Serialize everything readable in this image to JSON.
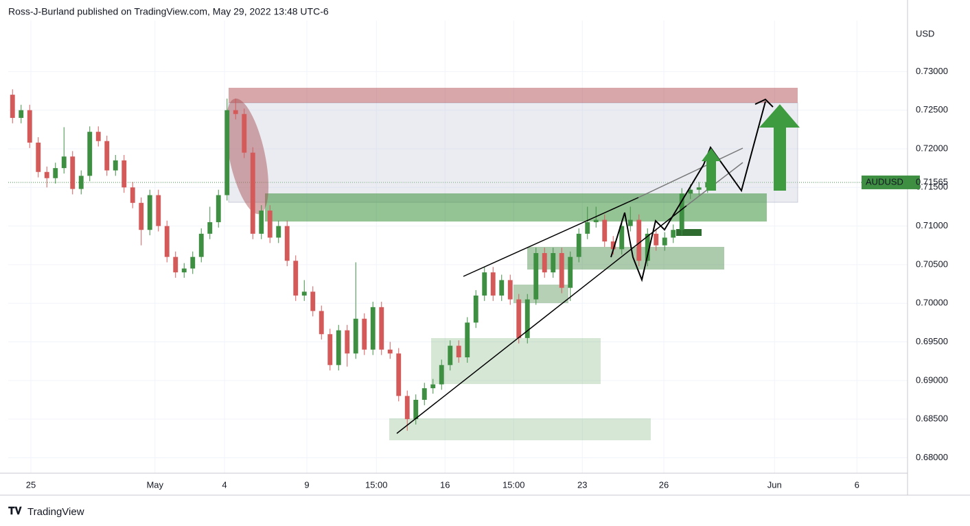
{
  "chart_data": {
    "type": "candlestick",
    "header": "Ross-J-Burland published on TradingView.com, May 29, 2022 13:48 UTC-6",
    "y_axis_label": "USD",
    "footer": "TradingView",
    "symbol": "AUDUSD",
    "last": {
      "value": 0.71565,
      "label": "0.71565"
    },
    "up_color": "#3f8f43",
    "down_color": "#d45a5a",
    "grid": true,
    "xlim": [
      -0.5,
      104.3
    ],
    "ylim": [
      0.678,
      0.7366
    ],
    "xticks": [
      {
        "value": 2.14,
        "label": "25"
      },
      {
        "value": 16.6,
        "label": "May"
      },
      {
        "value": 24.7,
        "label": "4"
      },
      {
        "value": 34.3,
        "label": "9"
      },
      {
        "value": 42.4,
        "label": "15:00"
      },
      {
        "value": 50.4,
        "label": "16"
      },
      {
        "value": 58.4,
        "label": "15:00"
      },
      {
        "value": 66.4,
        "label": "23"
      },
      {
        "value": 75.9,
        "label": "26"
      },
      {
        "value": 88.8,
        "label": "Jun"
      },
      {
        "value": 98.4,
        "label": "6"
      }
    ],
    "yticks": [
      {
        "value": 0.68,
        "label": "0.68000"
      },
      {
        "value": 0.685,
        "label": "0.68500"
      },
      {
        "value": 0.69,
        "label": "0.69000"
      },
      {
        "value": 0.695,
        "label": "0.69500"
      },
      {
        "value": 0.7,
        "label": "0.70000"
      },
      {
        "value": 0.705,
        "label": "0.70500"
      },
      {
        "value": 0.71,
        "label": "0.71000"
      },
      {
        "value": 0.715,
        "label": "0.71500"
      },
      {
        "value": 0.72,
        "label": "0.72000"
      },
      {
        "value": 0.725,
        "label": "0.72500"
      },
      {
        "value": 0.73,
        "label": "0.73000"
      }
    ],
    "x": [
      0,
      1,
      2,
      3,
      4,
      5,
      6,
      7,
      8,
      9,
      10,
      11,
      12,
      13,
      14,
      15,
      16,
      17,
      18,
      19,
      20,
      21,
      22,
      23,
      24,
      25,
      26,
      27,
      28,
      29,
      30,
      31,
      32,
      33,
      34,
      35,
      36,
      37,
      38,
      39,
      40,
      41,
      42,
      43,
      44,
      45,
      46,
      47,
      48,
      49,
      50,
      51,
      52,
      53,
      54,
      55,
      56,
      57,
      58,
      59,
      60,
      61,
      62,
      63,
      64,
      65,
      66,
      67,
      68,
      69,
      70,
      71,
      72,
      73,
      74,
      75,
      76,
      77,
      78,
      79,
      80,
      81
    ],
    "open": [
      0.727,
      0.724,
      0.725,
      0.7208,
      0.717,
      0.7162,
      0.7175,
      0.719,
      0.7148,
      0.7165,
      0.7222,
      0.721,
      0.7172,
      0.7185,
      0.715,
      0.713,
      0.7095,
      0.714,
      0.71,
      0.706,
      0.704,
      0.7045,
      0.706,
      0.709,
      0.7105,
      0.714,
      0.725,
      0.7245,
      0.7195,
      0.709,
      0.712,
      0.7085,
      0.71,
      0.7055,
      0.701,
      0.7015,
      0.699,
      0.696,
      0.692,
      0.6965,
      0.6935,
      0.698,
      0.694,
      0.6995,
      0.694,
      0.6935,
      0.688,
      0.685,
      0.6875,
      0.689,
      0.6895,
      0.692,
      0.6945,
      0.693,
      0.6975,
      0.701,
      0.704,
      0.701,
      0.703,
      0.7005,
      0.6955,
      0.7005,
      0.7065,
      0.704,
      0.7065,
      0.702,
      0.706,
      0.709,
      0.7105,
      0.7108,
      0.708,
      0.707,
      0.71,
      0.7108,
      0.7055,
      0.709,
      0.7075,
      0.7085,
      0.7095,
      0.7142,
      0.7147,
      0.715
    ],
    "high": [
      0.7277,
      0.7257,
      0.7257,
      0.7215,
      0.7177,
      0.7182,
      0.7228,
      0.7197,
      0.7172,
      0.7229,
      0.7229,
      0.7217,
      0.7192,
      0.7192,
      0.7157,
      0.7137,
      0.7147,
      0.7147,
      0.7107,
      0.7067,
      0.7052,
      0.7067,
      0.7097,
      0.7125,
      0.7147,
      0.7265,
      0.7265,
      0.7252,
      0.7202,
      0.7127,
      0.7127,
      0.7107,
      0.7107,
      0.7062,
      0.703,
      0.7022,
      0.6997,
      0.6967,
      0.6972,
      0.6972,
      0.7053,
      0.6987,
      0.7002,
      0.7002,
      0.695,
      0.6942,
      0.6887,
      0.6882,
      0.6897,
      0.6902,
      0.6927,
      0.6952,
      0.6952,
      0.6982,
      0.7017,
      0.7047,
      0.7047,
      0.7037,
      0.7037,
      0.7012,
      0.7012,
      0.7072,
      0.7072,
      0.7072,
      0.7072,
      0.7067,
      0.7097,
      0.7125,
      0.7125,
      0.7115,
      0.7087,
      0.7107,
      0.7125,
      0.7115,
      0.7097,
      0.7097,
      0.7092,
      0.7102,
      0.7149,
      0.7154,
      0.7157,
      0.7168
    ],
    "low": [
      0.7233,
      0.7233,
      0.7201,
      0.7163,
      0.715,
      0.7155,
      0.7168,
      0.7141,
      0.7141,
      0.7158,
      0.7203,
      0.7165,
      0.7165,
      0.7143,
      0.7123,
      0.7075,
      0.7088,
      0.7093,
      0.7053,
      0.7033,
      0.7033,
      0.7038,
      0.7053,
      0.7083,
      0.7098,
      0.7133,
      0.7238,
      0.7188,
      0.7083,
      0.7083,
      0.7078,
      0.7078,
      0.7048,
      0.7003,
      0.7003,
      0.6983,
      0.6953,
      0.6913,
      0.6913,
      0.6918,
      0.6928,
      0.6933,
      0.6933,
      0.6933,
      0.6928,
      0.6873,
      0.6835,
      0.6843,
      0.6868,
      0.6883,
      0.6888,
      0.6913,
      0.6923,
      0.6923,
      0.6968,
      0.7003,
      0.7003,
      0.7003,
      0.6998,
      0.6948,
      0.6948,
      0.6998,
      0.7033,
      0.7033,
      0.7013,
      0.7003,
      0.7053,
      0.7083,
      0.7098,
      0.7073,
      0.7063,
      0.7063,
      0.7093,
      0.7048,
      0.7048,
      0.7068,
      0.7068,
      0.7078,
      0.7088,
      0.7135,
      0.714,
      0.7143
    ],
    "close": [
      0.724,
      0.725,
      0.7208,
      0.717,
      0.7162,
      0.7175,
      0.719,
      0.7148,
      0.7165,
      0.7222,
      0.721,
      0.7172,
      0.7185,
      0.715,
      0.713,
      0.7095,
      0.714,
      0.71,
      0.706,
      0.704,
      0.7045,
      0.706,
      0.709,
      0.7105,
      0.714,
      0.725,
      0.7245,
      0.7195,
      0.709,
      0.712,
      0.7085,
      0.71,
      0.7055,
      0.701,
      0.7015,
      0.699,
      0.696,
      0.692,
      0.6965,
      0.6935,
      0.698,
      0.694,
      0.6995,
      0.694,
      0.6935,
      0.688,
      0.685,
      0.6875,
      0.689,
      0.6895,
      0.692,
      0.6945,
      0.693,
      0.6975,
      0.701,
      0.704,
      0.701,
      0.703,
      0.7005,
      0.6955,
      0.7005,
      0.7065,
      0.704,
      0.7065,
      0.702,
      0.706,
      0.709,
      0.7105,
      0.7108,
      0.708,
      0.707,
      0.71,
      0.7108,
      0.7055,
      0.709,
      0.7075,
      0.7085,
      0.7095,
      0.7142,
      0.7147,
      0.715,
      0.7157
    ]
  }
}
